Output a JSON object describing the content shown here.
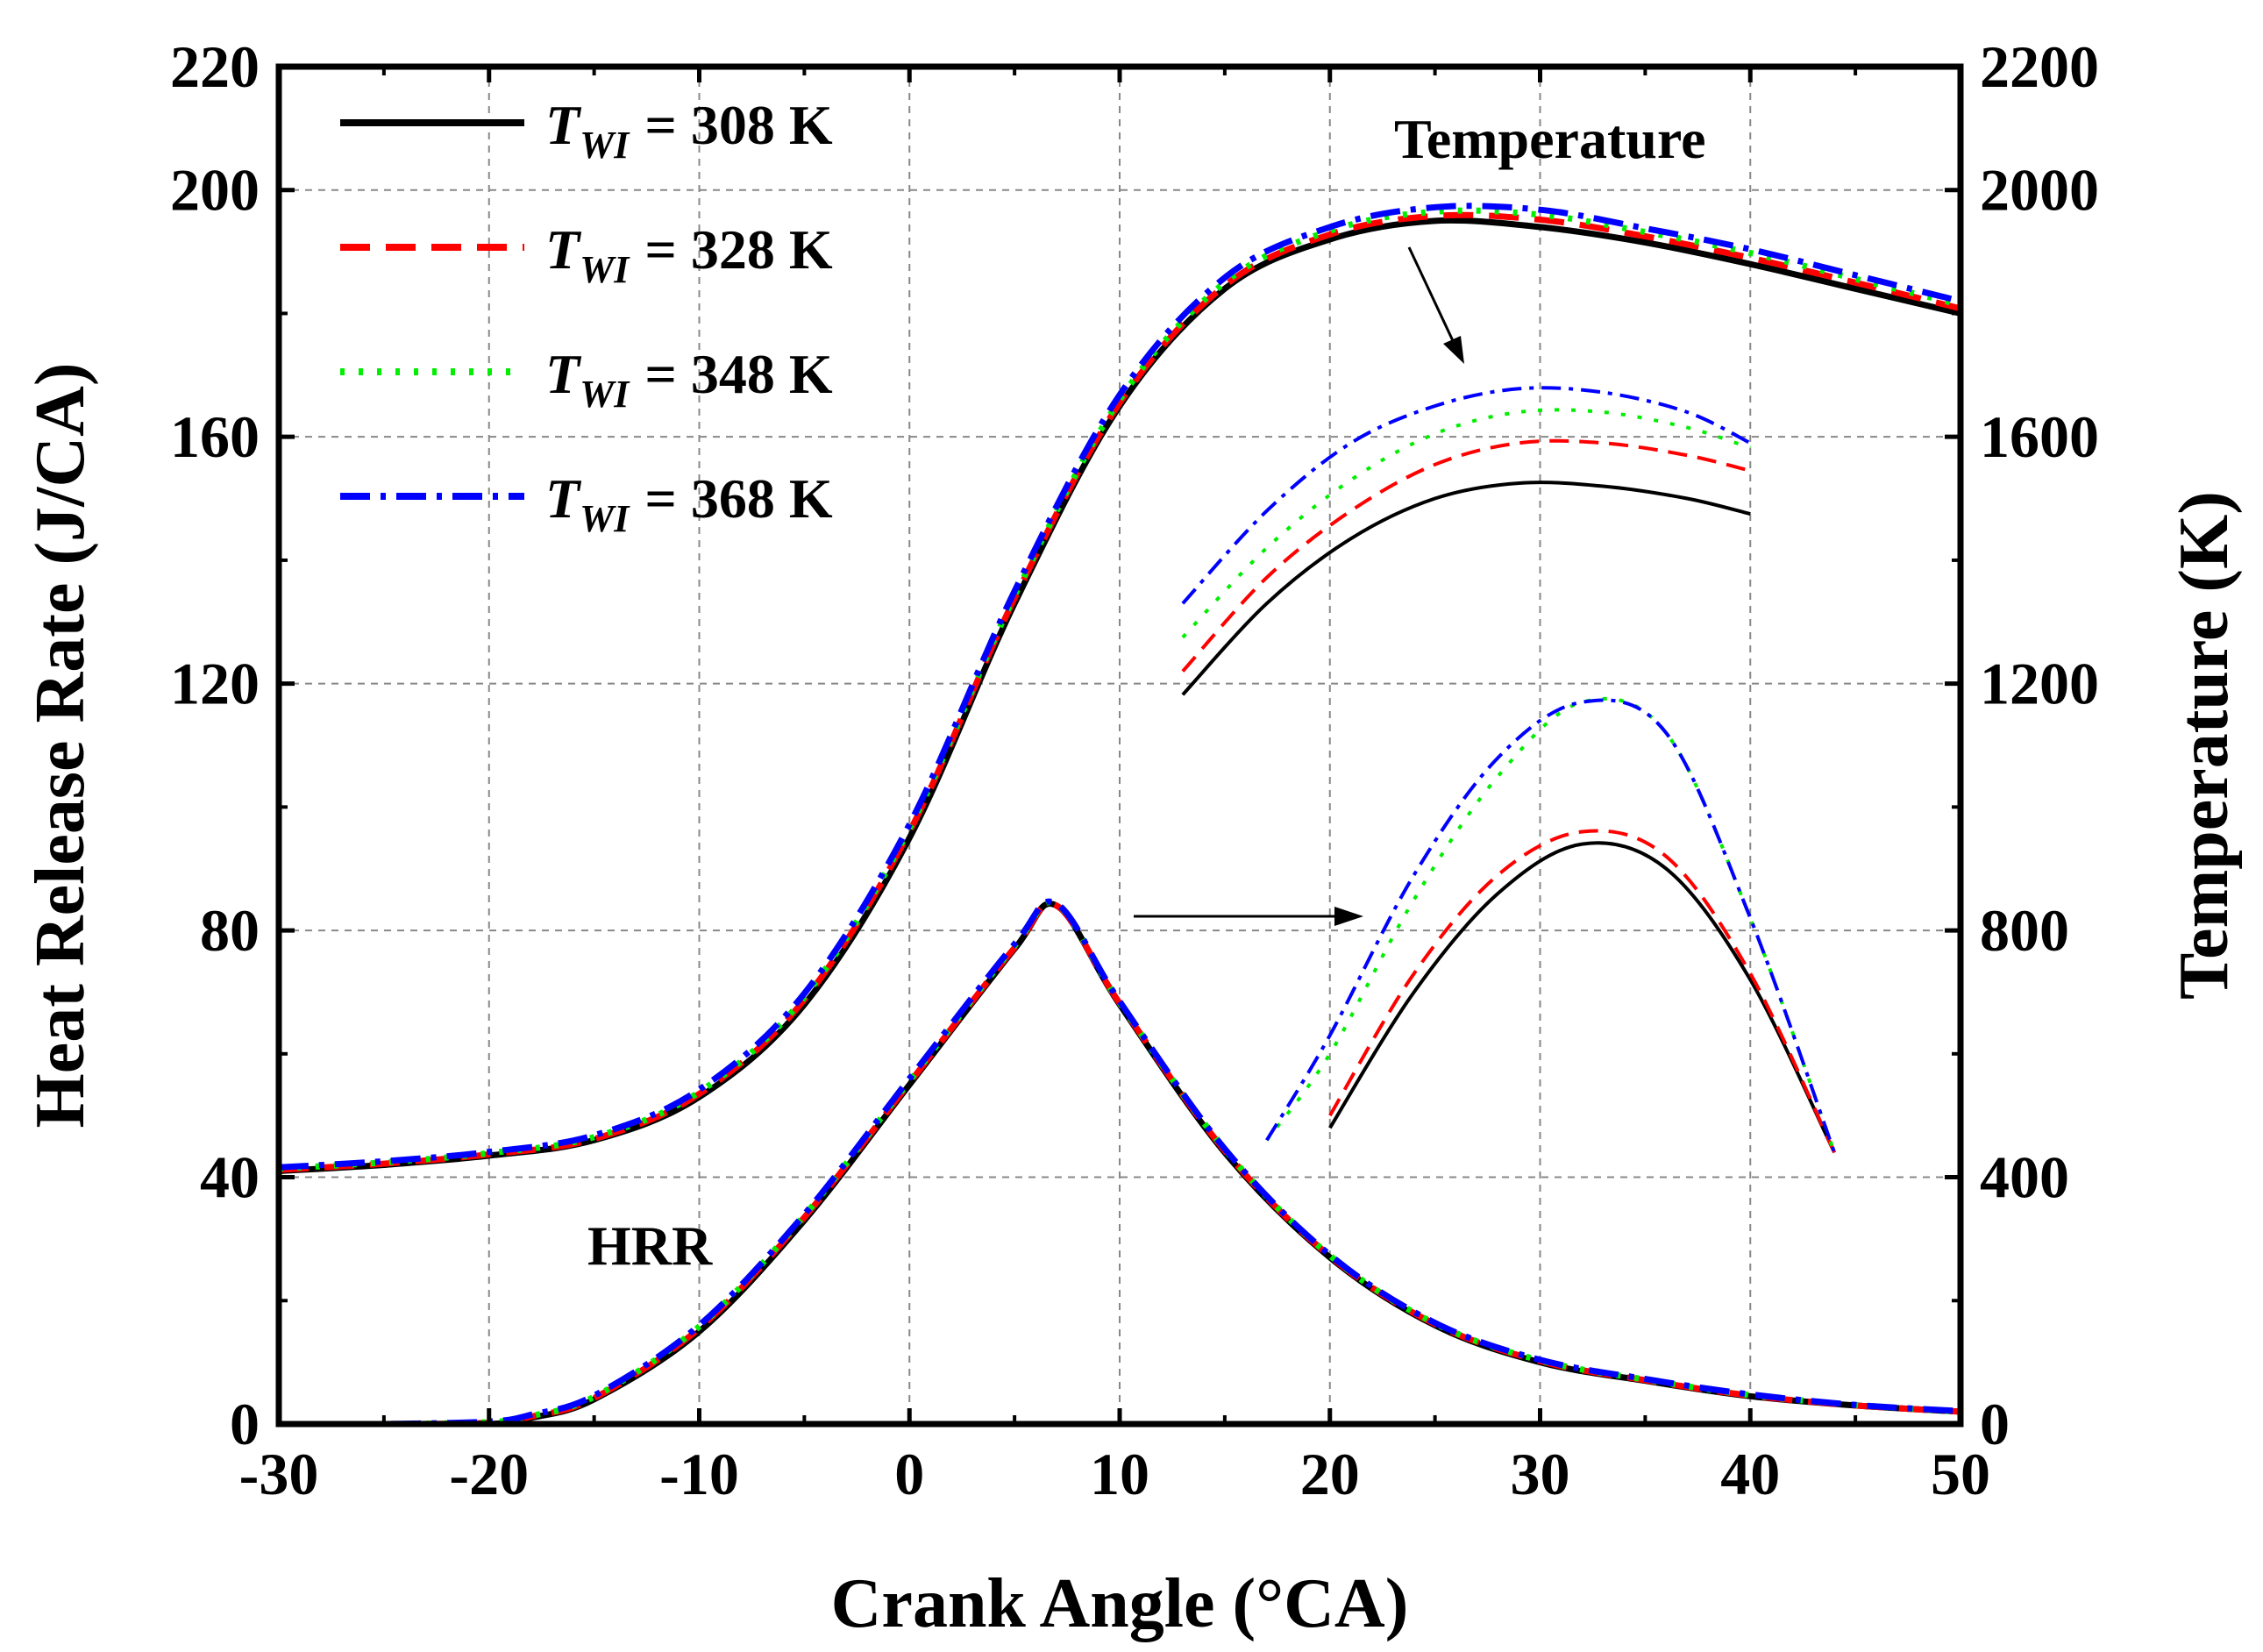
{
  "chart_data": {
    "type": "line",
    "xlabel": "Crank Angle (°CA)",
    "ylabel_left": "Heat Release Rate (J/CA)",
    "ylabel_right": "Temperature (K)",
    "xlim": [
      -30,
      50
    ],
    "ylim_left": [
      0,
      220
    ],
    "ylim_right": [
      0,
      2200
    ],
    "xticks": [
      "-30",
      "-20",
      "-10",
      "0",
      "10",
      "20",
      "30",
      "40",
      "50"
    ],
    "yticks_left": [
      "0",
      "40",
      "80",
      "120",
      "160",
      "200",
      "220"
    ],
    "yticks_right": [
      "0",
      "400",
      "800",
      "1200",
      "1600",
      "2000",
      "2200"
    ],
    "grid": true,
    "annotations": {
      "temperature": "Temperature",
      "hrr": "HRR"
    },
    "legend": {
      "placement": "top-left",
      "symbol": "T",
      "subscript": "WI",
      "entries": [
        {
          "value": "= 308 K",
          "color": "#000000",
          "dash": "solid"
        },
        {
          "value": "= 328 K",
          "color": "#ff0000",
          "dash": "dash"
        },
        {
          "value": "= 348 K",
          "color": "#00ee00",
          "dash": "dot"
        },
        {
          "value": "= 368 K",
          "color": "#0000ff",
          "dash": "dashdot"
        }
      ]
    },
    "temperature_series": {
      "x": [
        -30,
        -25,
        -20,
        -15,
        -10,
        -5,
        0,
        5,
        10,
        15,
        20,
        25,
        30,
        35,
        40,
        45,
        50
      ],
      "series": [
        {
          "name": "T_WI = 308 K",
          "values": [
            410,
            420,
            435,
            460,
            530,
            680,
            950,
            1330,
            1650,
            1840,
            1920,
            1950,
            1940,
            1915,
            1880,
            1840,
            1800
          ]
        },
        {
          "name": "T_WI = 328 K",
          "values": [
            412,
            422,
            437,
            462,
            535,
            688,
            960,
            1338,
            1655,
            1845,
            1928,
            1958,
            1952,
            1925,
            1890,
            1850,
            1808
          ]
        },
        {
          "name": "T_WI = 348 K",
          "values": [
            414,
            424,
            439,
            465,
            538,
            692,
            965,
            1342,
            1660,
            1850,
            1934,
            1965,
            1960,
            1932,
            1898,
            1856,
            1814
          ]
        },
        {
          "name": "T_WI = 368 K",
          "values": [
            416,
            426,
            441,
            468,
            542,
            698,
            972,
            1350,
            1668,
            1858,
            1940,
            1972,
            1968,
            1938,
            1904,
            1862,
            1820
          ]
        }
      ]
    },
    "hrr_series": {
      "x": [
        -30,
        -25,
        -20,
        -18,
        -15,
        -10,
        -5,
        0,
        5,
        7,
        10,
        15,
        20,
        25,
        30,
        35,
        40,
        45,
        50
      ],
      "series": [
        {
          "name": "T_WI = 308 K",
          "values": [
            0,
            0,
            0,
            1,
            4,
            15,
            33,
            55,
            77,
            84,
            68,
            44,
            27,
            16,
            10,
            7,
            4.5,
            3,
            2
          ]
        },
        {
          "name": "T_WI = 328 K",
          "values": [
            0,
            0,
            0.2,
            1.2,
            4.2,
            15.5,
            33.5,
            55.3,
            77.2,
            84,
            68.2,
            44.3,
            27.2,
            16.2,
            10.2,
            7.1,
            4.6,
            3,
            2
          ]
        },
        {
          "name": "T_WI = 348 K",
          "values": [
            0,
            0,
            0.3,
            1.3,
            4.4,
            15.8,
            33.8,
            55.6,
            77.5,
            84.2,
            68.3,
            44.5,
            27.3,
            16.3,
            10.3,
            7.2,
            4.7,
            3.1,
            2
          ]
        },
        {
          "name": "T_WI = 368 K",
          "values": [
            0,
            0,
            0.4,
            1.5,
            4.6,
            16,
            34,
            56,
            77.8,
            84.3,
            68.5,
            44.6,
            27.4,
            16.4,
            10.4,
            7.3,
            4.8,
            3.1,
            2.1
          ]
        }
      ]
    },
    "inset_temperature_zoom": {
      "x": [
        13,
        17,
        21,
        25,
        29,
        33,
        37,
        40
      ],
      "series": [
        {
          "name": "T_WI = 308 K",
          "values": [
            1182,
            1330,
            1435,
            1500,
            1525,
            1520,
            1500,
            1475
          ]
        },
        {
          "name": "T_WI = 328 K",
          "values": [
            1220,
            1372,
            1480,
            1555,
            1590,
            1590,
            1570,
            1545
          ]
        },
        {
          "name": "T_WI = 348 K",
          "values": [
            1275,
            1420,
            1530,
            1605,
            1640,
            1640,
            1615,
            1582
          ]
        },
        {
          "name": "T_WI = 368 K",
          "values": [
            1330,
            1480,
            1590,
            1650,
            1678,
            1672,
            1640,
            1590
          ]
        }
      ]
    },
    "inset_hrr_zoom": {
      "x": [
        17,
        20,
        24,
        28,
        32,
        36,
        40,
        44
      ],
      "series": [
        {
          "name": "T_WI = 308 K",
          "values": [
            null,
            48,
            70,
            86,
            94,
            90,
            72,
            44
          ]
        },
        {
          "name": "T_WI = 328 K",
          "values": [
            null,
            50,
            73,
            89,
            96,
            92,
            73,
            44
          ]
        },
        {
          "name": "T_WI = 348 K",
          "values": [
            46,
            60,
            85,
            105,
            117,
            112,
            82,
            44
          ]
        },
        {
          "name": "T_WI = 368 K",
          "values": [
            46,
            63,
            89,
            108,
            117,
            112,
            82,
            44
          ]
        }
      ]
    }
  }
}
